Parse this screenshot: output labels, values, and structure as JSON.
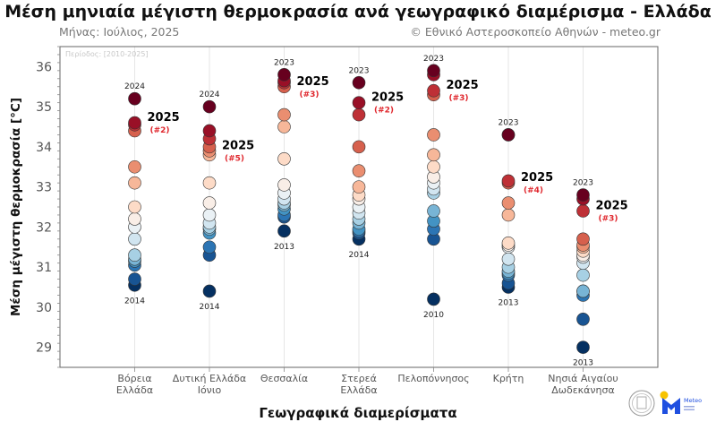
{
  "title": "Μέση μηνιαία μέγιστη θερμοκρασία ανά γεωγραφικό διαμέρισμα - Ελλάδα",
  "subtitle_left": "Μήνας: Ιούλιος, 2025",
  "subtitle_right": "© Εθνικό Αστεροσκοπείο Αθηνών - meteo.gr",
  "logos": {
    "meteo_text": "Meteo"
  },
  "chart_data": {
    "type": "scatter",
    "title": "Μέση μηνιαία μέγιστη θερμοκρασία ανά γεωγραφικό διαμέρισμα - Ελλάδα",
    "xlabel": "Γεωγραφικά διαμερίσματα",
    "ylabel": "Μέση μέγιστη θερμοκρασία [°C]",
    "period_note": "Περίοδος: [2010-2025]",
    "ylim": [
      28.5,
      36.5
    ],
    "yticks": [
      29,
      30,
      31,
      32,
      33,
      34,
      35,
      36
    ],
    "grid": "vertical",
    "colormap": "RdBu_r",
    "highlight_year": "2025",
    "categories": [
      {
        "label": [
          "Βόρεια",
          "Ελλάδα"
        ],
        "values": [
          35.2,
          34.6,
          34.55,
          34.4,
          33.5,
          33.1,
          32.5,
          32.2,
          32.0,
          31.7,
          31.3,
          31.2,
          31.15,
          31.05,
          30.7,
          30.55
        ],
        "value_2025": 34.6,
        "rank_2025": "(#2)",
        "max_year": "2024",
        "min_year": "2014"
      },
      {
        "label": [
          "Δυτική Ελλάδα",
          "Ιόνιο"
        ],
        "values": [
          35.0,
          34.4,
          34.2,
          34.0,
          33.9,
          33.8,
          33.1,
          32.6,
          32.3,
          32.1,
          32.0,
          31.95,
          31.85,
          31.5,
          31.3,
          30.4
        ],
        "value_2025": 33.9,
        "rank_2025": "(#5)",
        "max_year": "2024",
        "min_year": "2014"
      },
      {
        "label": [
          "Θεσσαλία"
        ],
        "values": [
          35.8,
          35.65,
          35.6,
          35.5,
          34.8,
          34.5,
          33.7,
          33.05,
          32.85,
          32.7,
          32.6,
          32.55,
          32.45,
          32.3,
          32.25,
          31.9
        ],
        "value_2025": 35.5,
        "rank_2025": "(#3)",
        "max_year": "2023",
        "min_year": "2013"
      },
      {
        "label": [
          "Στερεά",
          "Ελλάδα"
        ],
        "values": [
          35.6,
          35.1,
          34.8,
          34.0,
          33.4,
          33.0,
          32.8,
          32.7,
          32.5,
          32.35,
          32.2,
          32.1,
          31.95,
          31.9,
          31.85,
          31.7
        ],
        "value_2025": 35.1,
        "rank_2025": "(#2)",
        "max_year": "2023",
        "min_year": "2014"
      },
      {
        "label": [
          "Πελοπόννησος"
        ],
        "values": [
          35.9,
          35.8,
          35.4,
          35.3,
          34.3,
          33.8,
          33.5,
          33.25,
          33.1,
          32.95,
          32.85,
          32.4,
          32.15,
          31.95,
          31.7,
          30.2
        ],
        "value_2025": 35.4,
        "rank_2025": "(#3)",
        "max_year": "2023",
        "min_year": "2010"
      },
      {
        "label": [
          "Κρήτη"
        ],
        "values": [
          34.3,
          34.3,
          33.15,
          33.1,
          32.6,
          32.3,
          31.6,
          31.55,
          31.5,
          31.2,
          31.0,
          30.9,
          30.85,
          30.8,
          30.6,
          30.5
        ],
        "value_2025": 33.1,
        "rank_2025": "(#4)",
        "max_year": "2023",
        "min_year": "2013"
      },
      {
        "label": [
          "Νησιά Αιγαίου",
          "Δωδεκάνησα"
        ],
        "values": [
          32.8,
          32.7,
          32.4,
          31.7,
          31.55,
          31.5,
          31.4,
          31.3,
          31.25,
          31.1,
          30.8,
          30.4,
          30.4,
          30.3,
          29.7,
          29.0
        ],
        "value_2025": 32.4,
        "rank_2025": "(#3)",
        "max_year": "2023",
        "min_year": "2013"
      }
    ],
    "colors": {
      "highlight_label": "#000000",
      "rank_label": "#e0282e",
      "axis": "#555555",
      "grid": "#e6e6e6",
      "marker_edge": "#333333"
    }
  }
}
